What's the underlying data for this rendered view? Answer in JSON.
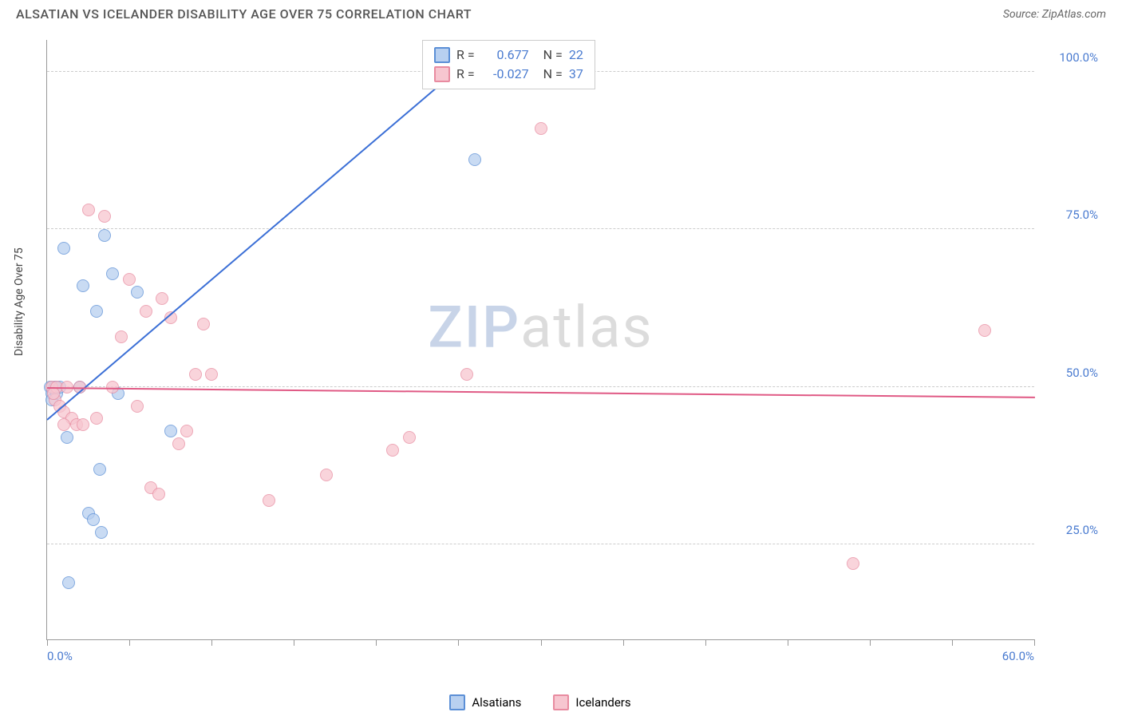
{
  "header": {
    "title": "ALSATIAN VS ICELANDER DISABILITY AGE OVER 75 CORRELATION CHART",
    "source_prefix": "Source: ",
    "source_name": "ZipAtlas.com"
  },
  "chart": {
    "type": "scatter",
    "ylabel": "Disability Age Over 75",
    "xlim": [
      0,
      60
    ],
    "ylim": [
      10,
      105
    ],
    "xtick_positions": [
      0,
      5,
      10,
      15,
      20,
      25,
      30,
      35,
      40,
      45,
      50,
      55,
      60
    ],
    "xlim_labels": [
      {
        "value": "0.0%",
        "pos": 0
      },
      {
        "value": "60.0%",
        "pos": 60
      }
    ],
    "ytick_lines": [
      25,
      50,
      75,
      100
    ],
    "ytick_labels": [
      "25.0%",
      "50.0%",
      "75.0%",
      "100.0%"
    ],
    "background_color": "#ffffff",
    "grid_color": "#cccccc",
    "tick_label_color": "#4a7bd0",
    "watermark_text_1": "ZIP",
    "watermark_text_2": "atlas",
    "series": [
      {
        "name": "Alsatians",
        "fill_color": "#b8d0f0",
        "stroke_color": "#5b8fd6",
        "trend_color": "#3b6fd6",
        "R": "0.677",
        "N": "22",
        "trend": {
          "x1": 0,
          "y1": 45,
          "x2": 27,
          "y2": 105
        },
        "points": [
          [
            0.2,
            50
          ],
          [
            0.3,
            49
          ],
          [
            0.5,
            50
          ],
          [
            0.3,
            48
          ],
          [
            0.6,
            49
          ],
          [
            1.0,
            72
          ],
          [
            1.2,
            42
          ],
          [
            1.3,
            19
          ],
          [
            2.0,
            50
          ],
          [
            2.2,
            66
          ],
          [
            2.5,
            30
          ],
          [
            2.8,
            29
          ],
          [
            3.0,
            62
          ],
          [
            3.2,
            37
          ],
          [
            3.5,
            74
          ],
          [
            3.3,
            27
          ],
          [
            4.0,
            68
          ],
          [
            4.3,
            49
          ],
          [
            5.5,
            65
          ],
          [
            7.5,
            43
          ],
          [
            26.0,
            86
          ],
          [
            0.8,
            50
          ]
        ]
      },
      {
        "name": "Icelanders",
        "fill_color": "#f7c6d0",
        "stroke_color": "#e88ba0",
        "trend_color": "#e05a85",
        "R": "-0.027",
        "N": "37",
        "trend": {
          "x1": 0,
          "y1": 50,
          "x2": 60,
          "y2": 48.5
        },
        "points": [
          [
            0.3,
            50
          ],
          [
            0.5,
            48
          ],
          [
            0.6,
            50
          ],
          [
            0.8,
            47
          ],
          [
            1.0,
            46
          ],
          [
            1.2,
            50
          ],
          [
            1.5,
            45
          ],
          [
            1.8,
            44
          ],
          [
            2.0,
            50
          ],
          [
            2.2,
            44
          ],
          [
            2.5,
            78
          ],
          [
            3.5,
            77
          ],
          [
            4.0,
            50
          ],
          [
            4.5,
            58
          ],
          [
            5.0,
            67
          ],
          [
            5.5,
            47
          ],
          [
            6.0,
            62
          ],
          [
            6.3,
            34
          ],
          [
            6.8,
            33
          ],
          [
            7.0,
            64
          ],
          [
            7.5,
            61
          ],
          [
            8.0,
            41
          ],
          [
            8.5,
            43
          ],
          [
            9.0,
            52
          ],
          [
            9.5,
            60
          ],
          [
            10.0,
            52
          ],
          [
            13.5,
            32
          ],
          [
            17.0,
            36
          ],
          [
            21.0,
            40
          ],
          [
            22.0,
            42
          ],
          [
            25.5,
            52
          ],
          [
            30.0,
            91
          ],
          [
            49.0,
            22
          ],
          [
            57.0,
            59
          ],
          [
            3.0,
            45
          ],
          [
            1.0,
            44
          ],
          [
            0.4,
            49
          ]
        ]
      }
    ]
  },
  "legend_bottom": {
    "items": [
      {
        "label": "Alsatians",
        "fill": "#b8d0f0",
        "stroke": "#5b8fd6"
      },
      {
        "label": "Icelanders",
        "fill": "#f7c6d0",
        "stroke": "#e88ba0"
      }
    ]
  },
  "legend_top": {
    "r_label": "R =",
    "n_label": "N ="
  }
}
